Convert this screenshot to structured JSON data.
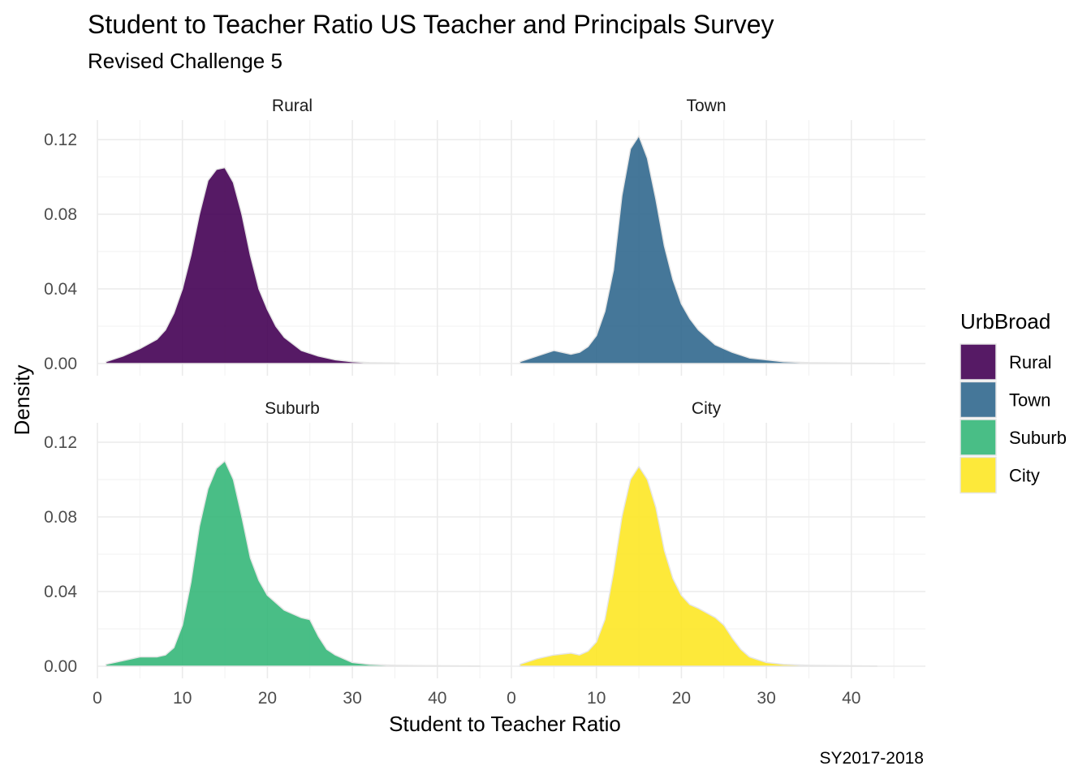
{
  "chart_data": {
    "type": "area",
    "chart_kind": "faceted density plot",
    "title": "Student to Teacher Ratio US Teacher and Principals Survey",
    "subtitle": "Revised Challenge 5",
    "xlabel": "Student to Teacher Ratio",
    "ylabel": "Density",
    "caption": "SY2017-2018",
    "xlim": [
      0,
      46
    ],
    "ylim": [
      0,
      0.126
    ],
    "x_ticks": [
      0,
      10,
      20,
      30,
      40
    ],
    "x_tick_labels": [
      "0",
      "10",
      "20",
      "30",
      "40"
    ],
    "y_ticks": [
      0.0,
      0.04,
      0.08,
      0.12
    ],
    "y_tick_labels": [
      "0.00",
      "0.04",
      "0.08",
      "0.12"
    ],
    "grid": true,
    "legend": {
      "title": "UrbBroad",
      "position": "right",
      "entries": [
        {
          "label": "Rural",
          "color": "#440154"
        },
        {
          "label": "Town",
          "color": "#31688E"
        },
        {
          "label": "Suburb",
          "color": "#35B779"
        },
        {
          "label": "City",
          "color": "#FDE725"
        }
      ]
    },
    "facets": [
      {
        "name": "Rural",
        "color": "#440154",
        "x": [
          1,
          3,
          5,
          7,
          8,
          9,
          10,
          11,
          12,
          13,
          14,
          15,
          16,
          17,
          18,
          19,
          20,
          21,
          22,
          24,
          26,
          28,
          30,
          32,
          35.5
        ],
        "y": [
          0.001,
          0.004,
          0.008,
          0.013,
          0.018,
          0.027,
          0.04,
          0.058,
          0.08,
          0.098,
          0.104,
          0.105,
          0.097,
          0.08,
          0.058,
          0.04,
          0.029,
          0.02,
          0.014,
          0.007,
          0.004,
          0.002,
          0.001,
          0.0005,
          0.0002
        ]
      },
      {
        "name": "Town",
        "color": "#31688E",
        "x": [
          1,
          3,
          5,
          7,
          8,
          9,
          10,
          11,
          12,
          13,
          14,
          15,
          16,
          17,
          18,
          19,
          20,
          21,
          22,
          24,
          26,
          28,
          30,
          32,
          35,
          40,
          44.5
        ],
        "y": [
          0.001,
          0.004,
          0.007,
          0.005,
          0.006,
          0.009,
          0.015,
          0.028,
          0.05,
          0.09,
          0.115,
          0.122,
          0.11,
          0.088,
          0.063,
          0.045,
          0.032,
          0.024,
          0.018,
          0.01,
          0.006,
          0.003,
          0.002,
          0.001,
          0.0005,
          0.0002,
          0.0001
        ]
      },
      {
        "name": "Suburb",
        "color": "#35B779",
        "x": [
          1,
          3,
          5,
          7,
          8,
          9,
          10,
          11,
          12,
          13,
          14,
          15,
          16,
          17,
          18,
          19,
          20,
          22,
          24,
          25,
          26,
          27,
          28,
          30,
          32,
          35,
          38,
          45
        ],
        "y": [
          0.001,
          0.003,
          0.005,
          0.005,
          0.006,
          0.01,
          0.022,
          0.045,
          0.075,
          0.095,
          0.106,
          0.11,
          0.1,
          0.08,
          0.058,
          0.046,
          0.038,
          0.03,
          0.026,
          0.025,
          0.016,
          0.009,
          0.006,
          0.002,
          0.001,
          0.0005,
          0.0003,
          0.0001
        ]
      },
      {
        "name": "City",
        "color": "#FDE725",
        "x": [
          1,
          3,
          5,
          7,
          8,
          9,
          10,
          11,
          12,
          13,
          14,
          15,
          16,
          17,
          18,
          19,
          20,
          21,
          22,
          24,
          25,
          26,
          27,
          28,
          30,
          32,
          35,
          38,
          43
        ],
        "y": [
          0.001,
          0.004,
          0.006,
          0.007,
          0.006,
          0.008,
          0.013,
          0.025,
          0.05,
          0.08,
          0.1,
          0.107,
          0.1,
          0.085,
          0.062,
          0.047,
          0.038,
          0.033,
          0.031,
          0.026,
          0.022,
          0.015,
          0.009,
          0.005,
          0.002,
          0.001,
          0.0005,
          0.0003,
          0.0001
        ]
      }
    ]
  }
}
